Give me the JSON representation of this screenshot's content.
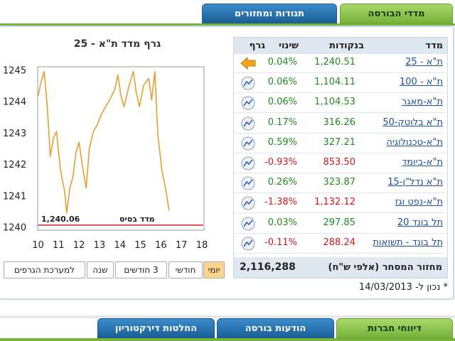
{
  "tabs_top": [
    "מדדי הבורסה",
    "תנודות ומחזורים"
  ],
  "chart_data": {
    "type": "line",
    "title": "גרף מדד ת\"א - 25",
    "x": [
      10.0,
      10.15,
      10.3,
      10.45,
      10.6,
      10.75,
      10.9,
      11.1,
      11.3,
      11.4,
      11.55,
      11.7,
      11.85,
      12.0,
      12.2,
      12.35,
      12.5,
      12.7,
      12.9,
      13.1,
      13.3,
      13.5,
      13.75,
      13.9,
      14.05,
      14.2,
      14.4,
      14.65,
      14.8,
      14.95,
      15.15,
      15.4,
      15.55,
      15.7,
      15.85,
      16.05,
      16.25,
      16.4
    ],
    "values": [
      1244.17,
      1244.62,
      1244.95,
      1243.83,
      1242.25,
      1242.82,
      1243.04,
      1241.8,
      1241.13,
      1240.45,
      1241.24,
      1241.58,
      1242.36,
      1242.7,
      1241.8,
      1241.24,
      1242.48,
      1243.04,
      1243.27,
      1243.6,
      1243.83,
      1244.05,
      1244.39,
      1244.84,
      1244.17,
      1243.83,
      1244.39,
      1244.95,
      1244.28,
      1243.83,
      1244.5,
      1244.73,
      1244.05,
      1244.95,
      1242.93,
      1241.8,
      1241.13,
      1240.52
    ],
    "color": "#e3a030",
    "xlim": [
      10,
      18
    ],
    "xticks": [
      10,
      11,
      12,
      13,
      14,
      15,
      16,
      17,
      18
    ],
    "ylim": [
      1239.9,
      1245.1
    ],
    "yticks": [
      1240,
      1241,
      1242,
      1243,
      1244,
      1245
    ],
    "baseline": {
      "value": 1240.06,
      "label": "1,240.06",
      "title": "מדד בסיס",
      "color": "#d42020"
    }
  },
  "range_buttons": [
    "יומי",
    "חודשי",
    "3 חודשים",
    "שנה",
    "למערכת הגרפים"
  ],
  "table": {
    "headers": [
      "מדד",
      "בנקודות",
      "שינוי",
      "גרף"
    ],
    "rows": [
      [
        "ת\"א - 25",
        "1,240.51",
        "0.04%"
      ],
      [
        "ת\"א - 100",
        "1,104.11",
        "0.06%"
      ],
      [
        "ת\"א-מאגר",
        "1,104.53",
        "0.06%"
      ],
      [
        "ת\"א בלוטק-50",
        "316.26",
        "0.17%"
      ],
      [
        "ת\"א-טכנולוגיה",
        "327.21",
        "0.59%"
      ],
      [
        "ת\"א-ביומד",
        "853.50",
        "-0.93%"
      ],
      [
        "ת\"א נדל\"ן-15",
        "323.87",
        "0.26%"
      ],
      [
        "ת\"א-נפט וגז",
        "1,132.12",
        "-1.38%"
      ],
      [
        "תל בונד 20",
        "297.85",
        "0.03%"
      ],
      [
        "תל בונד - תשואות",
        "288.24",
        "-0.11%"
      ]
    ]
  },
  "turnover": {
    "label": "מחזור המסחר (אלפי ש\"ח)",
    "value": "2,116,288"
  },
  "as_of": "* נכון ל- 14/03/2013",
  "tabs_bottom": [
    "דיווחי חברות",
    "הודעות בורסה",
    "החלטות דירקטוריון"
  ]
}
